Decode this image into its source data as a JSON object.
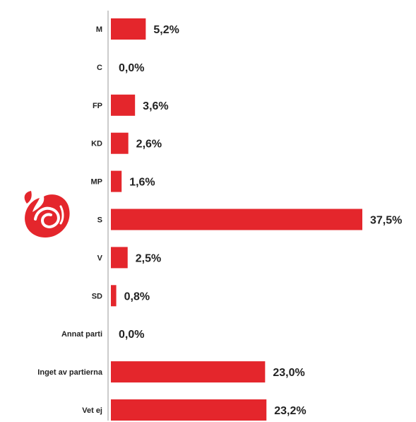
{
  "chart_data": {
    "type": "bar",
    "orientation": "horizontal",
    "categories": [
      "M",
      "C",
      "FP",
      "KD",
      "MP",
      "S",
      "V",
      "SD",
      "Annat parti",
      "Inget av partierna",
      "Vet ej"
    ],
    "values": [
      5.2,
      0.0,
      3.6,
      2.6,
      1.6,
      37.5,
      2.5,
      0.8,
      0.0,
      23.0,
      23.2
    ],
    "value_labels": [
      "5,2%",
      "0,0%",
      "3,6%",
      "2,6%",
      "1,6%",
      "37,5%",
      "2,5%",
      "0,8%",
      "0,0%",
      "23,0%",
      "23,2%"
    ],
    "xlim": [
      0,
      37.5
    ],
    "grid": false,
    "bar_color": "#e4262c",
    "highlight_category": "S",
    "highlight_icon": "social-democrats-rose-logo-icon"
  }
}
